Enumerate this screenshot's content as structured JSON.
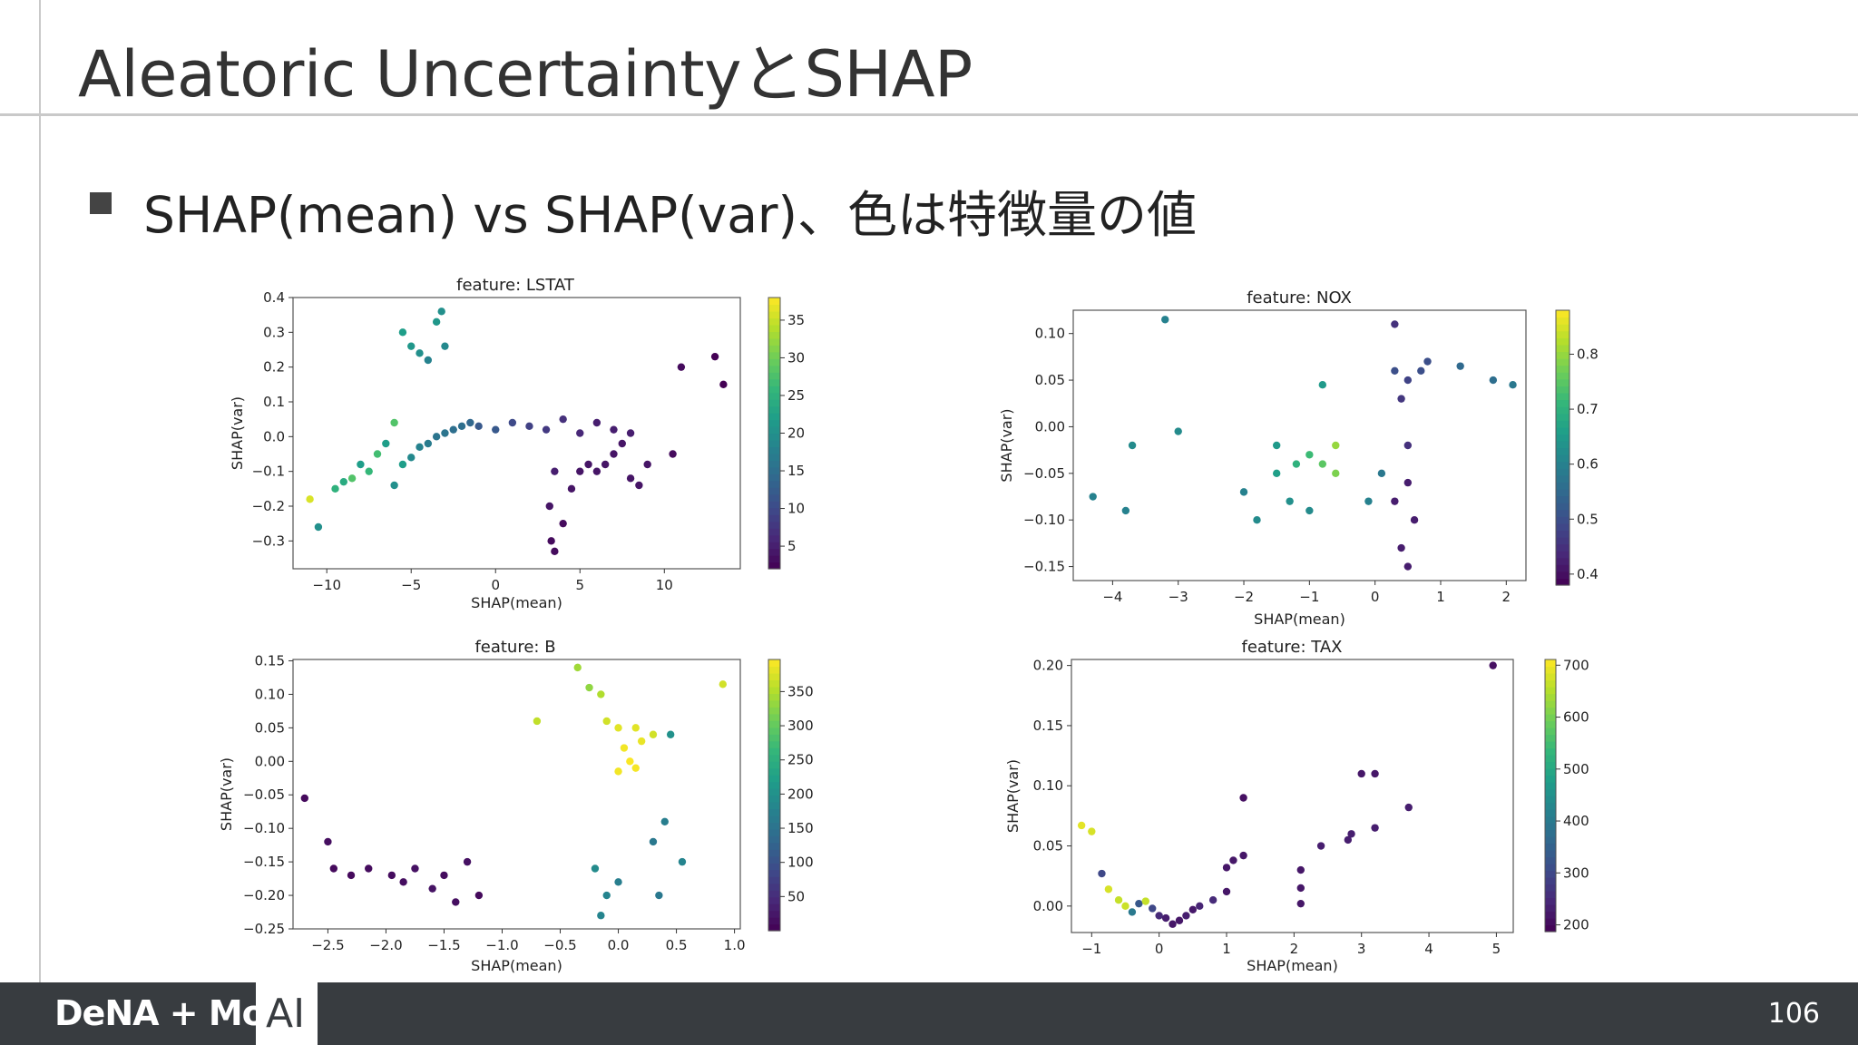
{
  "slide": {
    "title": "Aleatoric UncertaintyとSHAP",
    "bullet": "SHAP(mean) vs SHAP(var)、色は特徴量の値",
    "page_number": "106"
  },
  "footer": {
    "logo_text": "DeNA + MoT",
    "ai_label": "AI"
  },
  "colors": {
    "footer_bg": "#383c40",
    "rule": "#c9c9c9",
    "title_text": "#333333"
  },
  "chart_data": [
    {
      "type": "scatter",
      "title": "feature: LSTAT",
      "xlabel": "SHAP(mean)",
      "ylabel": "SHAP(var)",
      "xlim": [
        -12,
        14.5
      ],
      "ylim": [
        -0.38,
        0.4
      ],
      "xticks": [
        -10,
        -5,
        0,
        5,
        10
      ],
      "xtick_labels": [
        "−10",
        "−5",
        "0",
        "5",
        "10"
      ],
      "yticks": [
        -0.3,
        -0.2,
        -0.1,
        0.0,
        0.1,
        0.2,
        0.3,
        0.4
      ],
      "ytick_labels": [
        "−0.3",
        "−0.2",
        "−0.1",
        "0.0",
        "0.1",
        "0.2",
        "0.3",
        "0.4"
      ],
      "colorbar": {
        "min": 2,
        "max": 38,
        "ticks": [
          5,
          10,
          15,
          20,
          25,
          30,
          35
        ],
        "tick_labels": [
          "5",
          "10",
          "15",
          "20",
          "25",
          "30",
          "35"
        ]
      },
      "points": [
        [
          -11,
          -0.18,
          36
        ],
        [
          -10.5,
          -0.26,
          20
        ],
        [
          -9.5,
          -0.15,
          25
        ],
        [
          -9,
          -0.13,
          24
        ],
        [
          -8.5,
          -0.12,
          28
        ],
        [
          -8,
          -0.08,
          22
        ],
        [
          -7.5,
          -0.1,
          26
        ],
        [
          -7,
          -0.05,
          27
        ],
        [
          -6.5,
          -0.02,
          22
        ],
        [
          -6,
          0.04,
          28
        ],
        [
          -6,
          -0.14,
          20
        ],
        [
          -5.5,
          -0.08,
          22
        ],
        [
          -5,
          -0.06,
          19
        ],
        [
          -4.5,
          -0.03,
          18
        ],
        [
          -4,
          -0.02,
          17
        ],
        [
          -3.5,
          0.0,
          16
        ],
        [
          -3,
          0.01,
          16
        ],
        [
          -2.5,
          0.02,
          15
        ],
        [
          -2,
          0.03,
          15
        ],
        [
          -1.5,
          0.04,
          14
        ],
        [
          -5.5,
          0.3,
          22
        ],
        [
          -5,
          0.26,
          21
        ],
        [
          -4.5,
          0.24,
          20
        ],
        [
          -4,
          0.22,
          18
        ],
        [
          -3.5,
          0.33,
          21
        ],
        [
          -3.2,
          0.36,
          20
        ],
        [
          -3,
          0.26,
          19
        ],
        [
          -1,
          0.03,
          12
        ],
        [
          0,
          0.02,
          12
        ],
        [
          1,
          0.04,
          10
        ],
        [
          2,
          0.03,
          9
        ],
        [
          3,
          0.02,
          8
        ],
        [
          4,
          0.05,
          7
        ],
        [
          5,
          0.01,
          6
        ],
        [
          6,
          0.04,
          5
        ],
        [
          7,
          0.02,
          5
        ],
        [
          8,
          0.01,
          5
        ],
        [
          3.5,
          -0.1,
          5
        ],
        [
          3.2,
          -0.2,
          4
        ],
        [
          3.3,
          -0.3,
          3
        ],
        [
          3.5,
          -0.33,
          3
        ],
        [
          4,
          -0.25,
          3
        ],
        [
          4.5,
          -0.15,
          4
        ],
        [
          5,
          -0.1,
          4
        ],
        [
          5.5,
          -0.08,
          4
        ],
        [
          6,
          -0.1,
          4
        ],
        [
          6.5,
          -0.08,
          4
        ],
        [
          7,
          -0.05,
          4
        ],
        [
          7.5,
          -0.02,
          4
        ],
        [
          8,
          -0.12,
          4
        ],
        [
          8.5,
          -0.14,
          4
        ],
        [
          9,
          -0.08,
          4
        ],
        [
          10.5,
          -0.05,
          3
        ],
        [
          11,
          0.2,
          3
        ],
        [
          13,
          0.23,
          2
        ],
        [
          13.5,
          0.15,
          2
        ]
      ]
    },
    {
      "type": "scatter",
      "title": "feature: NOX",
      "xlabel": "SHAP(mean)",
      "ylabel": "SHAP(var)",
      "xlim": [
        -4.6,
        2.3
      ],
      "ylim": [
        -0.165,
        0.125
      ],
      "xticks": [
        -4,
        -3,
        -2,
        -1,
        0,
        1,
        2
      ],
      "xtick_labels": [
        "−4",
        "−3",
        "−2",
        "−1",
        "0",
        "1",
        "2"
      ],
      "yticks": [
        -0.15,
        -0.1,
        -0.05,
        0.0,
        0.05,
        0.1
      ],
      "ytick_labels": [
        "−0.15",
        "−0.10",
        "−0.05",
        "0.00",
        "0.05",
        "0.10"
      ],
      "colorbar": {
        "min": 0.38,
        "max": 0.88,
        "ticks": [
          0.4,
          0.5,
          0.6,
          0.7,
          0.8
        ],
        "tick_labels": [
          "0.4",
          "0.5",
          "0.6",
          "0.7",
          "0.8"
        ]
      },
      "points": [
        [
          -3.2,
          0.115,
          0.6
        ],
        [
          -4.3,
          -0.075,
          0.6
        ],
        [
          -3.8,
          -0.09,
          0.6
        ],
        [
          -3.7,
          -0.02,
          0.62
        ],
        [
          -3.0,
          -0.005,
          0.62
        ],
        [
          -2.0,
          -0.07,
          0.6
        ],
        [
          -1.8,
          -0.1,
          0.62
        ],
        [
          -1.5,
          -0.02,
          0.65
        ],
        [
          -1.5,
          -0.05,
          0.66
        ],
        [
          -1.2,
          -0.04,
          0.7
        ],
        [
          -1.0,
          -0.03,
          0.72
        ],
        [
          -0.8,
          -0.04,
          0.75
        ],
        [
          -0.6,
          -0.02,
          0.8
        ],
        [
          -0.6,
          -0.05,
          0.78
        ],
        [
          -1.3,
          -0.08,
          0.63
        ],
        [
          -1.0,
          -0.09,
          0.62
        ],
        [
          -0.8,
          0.045,
          0.65
        ],
        [
          0.3,
          0.11,
          0.45
        ],
        [
          0.3,
          0.06,
          0.5
        ],
        [
          0.5,
          0.05,
          0.48
        ],
        [
          0.7,
          0.06,
          0.5
        ],
        [
          0.4,
          0.03,
          0.46
        ],
        [
          0.5,
          -0.02,
          0.45
        ],
        [
          0.5,
          -0.06,
          0.42
        ],
        [
          0.6,
          -0.1,
          0.42
        ],
        [
          0.4,
          -0.13,
          0.42
        ],
        [
          0.5,
          -0.15,
          0.42
        ],
        [
          0.3,
          -0.08,
          0.42
        ],
        [
          0.1,
          -0.05,
          0.58
        ],
        [
          -0.1,
          -0.08,
          0.6
        ],
        [
          1.3,
          0.065,
          0.55
        ],
        [
          1.8,
          0.05,
          0.56
        ],
        [
          2.1,
          0.045,
          0.58
        ],
        [
          0.8,
          0.07,
          0.5
        ]
      ]
    },
    {
      "type": "scatter",
      "title": "feature: B",
      "xlabel": "SHAP(mean)",
      "ylabel": "SHAP(var)",
      "xlim": [
        -2.8,
        1.05
      ],
      "ylim": [
        -0.25,
        0.152
      ],
      "xticks": [
        -2.5,
        -2.0,
        -1.5,
        -1.0,
        -0.5,
        0.0,
        0.5,
        1.0
      ],
      "xtick_labels": [
        "−2.5",
        "−2.0",
        "−1.5",
        "−1.0",
        "−0.5",
        "0.0",
        "0.5",
        "1.0"
      ],
      "yticks": [
        -0.25,
        -0.2,
        -0.15,
        -0.1,
        -0.05,
        0.0,
        0.05,
        0.1,
        0.15
      ],
      "ytick_labels": [
        "−0.25",
        "−0.20",
        "−0.15",
        "−0.10",
        "−0.05",
        "0.00",
        "0.05",
        "0.10",
        "0.15"
      ],
      "colorbar": {
        "min": 0,
        "max": 397,
        "ticks": [
          50,
          100,
          150,
          200,
          250,
          300,
          350
        ],
        "tick_labels": [
          "50",
          "100",
          "150",
          "200",
          "250",
          "300",
          "350"
        ]
      },
      "points": [
        [
          -2.7,
          -0.055,
          10
        ],
        [
          -2.5,
          -0.12,
          15
        ],
        [
          -2.45,
          -0.16,
          10
        ],
        [
          -2.3,
          -0.17,
          10
        ],
        [
          -2.15,
          -0.16,
          12
        ],
        [
          -1.95,
          -0.17,
          12
        ],
        [
          -1.85,
          -0.18,
          15
        ],
        [
          -1.75,
          -0.16,
          18
        ],
        [
          -1.6,
          -0.19,
          20
        ],
        [
          -1.5,
          -0.17,
          12
        ],
        [
          -1.4,
          -0.21,
          15
        ],
        [
          -1.3,
          -0.15,
          18
        ],
        [
          -1.2,
          -0.2,
          10
        ],
        [
          -0.7,
          0.06,
          360
        ],
        [
          -0.35,
          0.14,
          340
        ],
        [
          -0.25,
          0.11,
          330
        ],
        [
          -0.15,
          0.1,
          350
        ],
        [
          -0.1,
          0.06,
          370
        ],
        [
          0.0,
          0.05,
          380
        ],
        [
          0.05,
          0.02,
          390
        ],
        [
          0.1,
          0.0,
          395
        ],
        [
          0.15,
          -0.01,
          392
        ],
        [
          0.2,
          0.03,
          385
        ],
        [
          0.3,
          0.04,
          370
        ],
        [
          0.0,
          -0.015,
          390
        ],
        [
          0.15,
          0.05,
          380
        ],
        [
          0.45,
          0.04,
          200
        ],
        [
          0.9,
          0.115,
          370
        ],
        [
          -0.2,
          -0.16,
          190
        ],
        [
          -0.1,
          -0.2,
          180
        ],
        [
          0.0,
          -0.18,
          170
        ],
        [
          -0.15,
          -0.23,
          180
        ],
        [
          0.3,
          -0.12,
          160
        ],
        [
          0.4,
          -0.09,
          170
        ],
        [
          0.55,
          -0.15,
          180
        ],
        [
          0.35,
          -0.2,
          160
        ]
      ]
    },
    {
      "type": "scatter",
      "title": "feature: TAX",
      "xlabel": "SHAP(mean)",
      "ylabel": "SHAP(var)",
      "xlim": [
        -1.3,
        5.25
      ],
      "ylim": [
        -0.022,
        0.205
      ],
      "xticks": [
        -1,
        0,
        1,
        2,
        3,
        4,
        5
      ],
      "xtick_labels": [
        "−1",
        "0",
        "1",
        "2",
        "3",
        "4",
        "5"
      ],
      "yticks": [
        0.0,
        0.05,
        0.1,
        0.15,
        0.2
      ],
      "ytick_labels": [
        "0.00",
        "0.05",
        "0.10",
        "0.15",
        "0.20"
      ],
      "colorbar": {
        "min": 187,
        "max": 711,
        "ticks": [
          200,
          300,
          400,
          500,
          600,
          700
        ],
        "tick_labels": [
          "200",
          "300",
          "400",
          "500",
          "600",
          "700"
        ]
      },
      "points": [
        [
          -1.15,
          0.067,
          690
        ],
        [
          -1.0,
          0.062,
          680
        ],
        [
          -0.85,
          0.027,
          300
        ],
        [
          -0.75,
          0.014,
          680
        ],
        [
          -0.6,
          0.005,
          666
        ],
        [
          -0.5,
          0.0,
          670
        ],
        [
          -0.4,
          -0.005,
          400
        ],
        [
          -0.3,
          0.002,
          330
        ],
        [
          -0.2,
          0.004,
          666
        ],
        [
          -0.1,
          -0.002,
          300
        ],
        [
          0.0,
          -0.008,
          250
        ],
        [
          0.1,
          -0.01,
          230
        ],
        [
          0.2,
          -0.015,
          220
        ],
        [
          0.3,
          -0.012,
          220
        ],
        [
          0.4,
          -0.008,
          230
        ],
        [
          0.5,
          -0.003,
          222
        ],
        [
          0.6,
          0.0,
          240
        ],
        [
          0.8,
          0.005,
          250
        ],
        [
          1.0,
          0.012,
          220
        ],
        [
          1.0,
          0.032,
          220
        ],
        [
          1.1,
          0.038,
          220
        ],
        [
          1.25,
          0.042,
          220
        ],
        [
          1.25,
          0.09,
          210
        ],
        [
          2.1,
          0.015,
          220
        ],
        [
          2.1,
          0.03,
          220
        ],
        [
          2.1,
          0.002,
          220
        ],
        [
          2.4,
          0.05,
          230
        ],
        [
          2.8,
          0.055,
          230
        ],
        [
          2.85,
          0.06,
          230
        ],
        [
          3.0,
          0.11,
          220
        ],
        [
          3.2,
          0.11,
          220
        ],
        [
          3.2,
          0.065,
          230
        ],
        [
          3.7,
          0.082,
          230
        ],
        [
          4.95,
          0.2,
          210
        ]
      ]
    }
  ]
}
